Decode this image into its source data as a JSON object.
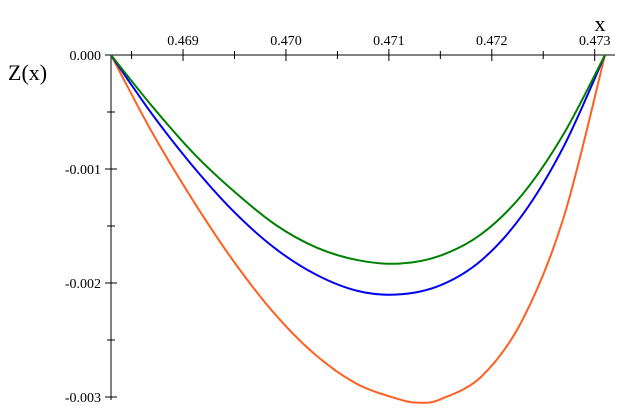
{
  "chart_data": {
    "type": "line",
    "xlabel": "x",
    "ylabel": "Z(x)",
    "xlim": [
      0.4683,
      0.4731
    ],
    "ylim": [
      -0.003,
      0.0
    ],
    "x_ticks": [
      0.469,
      0.47,
      0.471,
      0.472,
      0.473
    ],
    "x_tick_labels": [
      "0.469",
      "0.470",
      "0.471",
      "0.472",
      "0.473"
    ],
    "y_ticks": [
      0.0,
      -0.001,
      -0.002,
      -0.003
    ],
    "y_tick_labels": [
      "0.000",
      "-0.001",
      "-0.002",
      "-0.003"
    ],
    "grid": false,
    "series": [
      {
        "color": "#ff6020",
        "x": [
          0.4683,
          0.4687,
          0.4691,
          0.4695,
          0.4699,
          0.4703,
          0.4707,
          0.4711,
          0.4713,
          0.4715,
          0.4719,
          0.4723,
          0.4727,
          0.4731
        ],
        "values": [
          0.0,
          -0.00068,
          -0.00128,
          -0.00182,
          -0.00228,
          -0.00264,
          -0.00289,
          -0.00302,
          -0.00305,
          -0.00302,
          -0.00282,
          -0.00232,
          -0.00142,
          0.0
        ]
      },
      {
        "color": "#0000ee",
        "x": [
          0.4683,
          0.4687,
          0.4691,
          0.4695,
          0.4699,
          0.4703,
          0.4707,
          0.4711,
          0.4715,
          0.4719,
          0.4723,
          0.4727,
          0.4731
        ],
        "values": [
          0.0,
          -0.00052,
          -0.00098,
          -0.00138,
          -0.0017,
          -0.00193,
          -0.00207,
          -0.0021,
          -0.00202,
          -0.0018,
          -0.0014,
          -0.0008,
          0.0
        ]
      },
      {
        "color": "#008000",
        "x": [
          0.4683,
          0.4687,
          0.4691,
          0.4695,
          0.4699,
          0.4703,
          0.4707,
          0.4711,
          0.4715,
          0.4719,
          0.4723,
          0.4727,
          0.4731
        ],
        "values": [
          0.0,
          -0.00045,
          -0.00086,
          -0.0012,
          -0.00149,
          -0.00169,
          -0.0018,
          -0.00183,
          -0.00176,
          -0.00157,
          -0.00122,
          -0.00069,
          0.0
        ]
      }
    ]
  }
}
